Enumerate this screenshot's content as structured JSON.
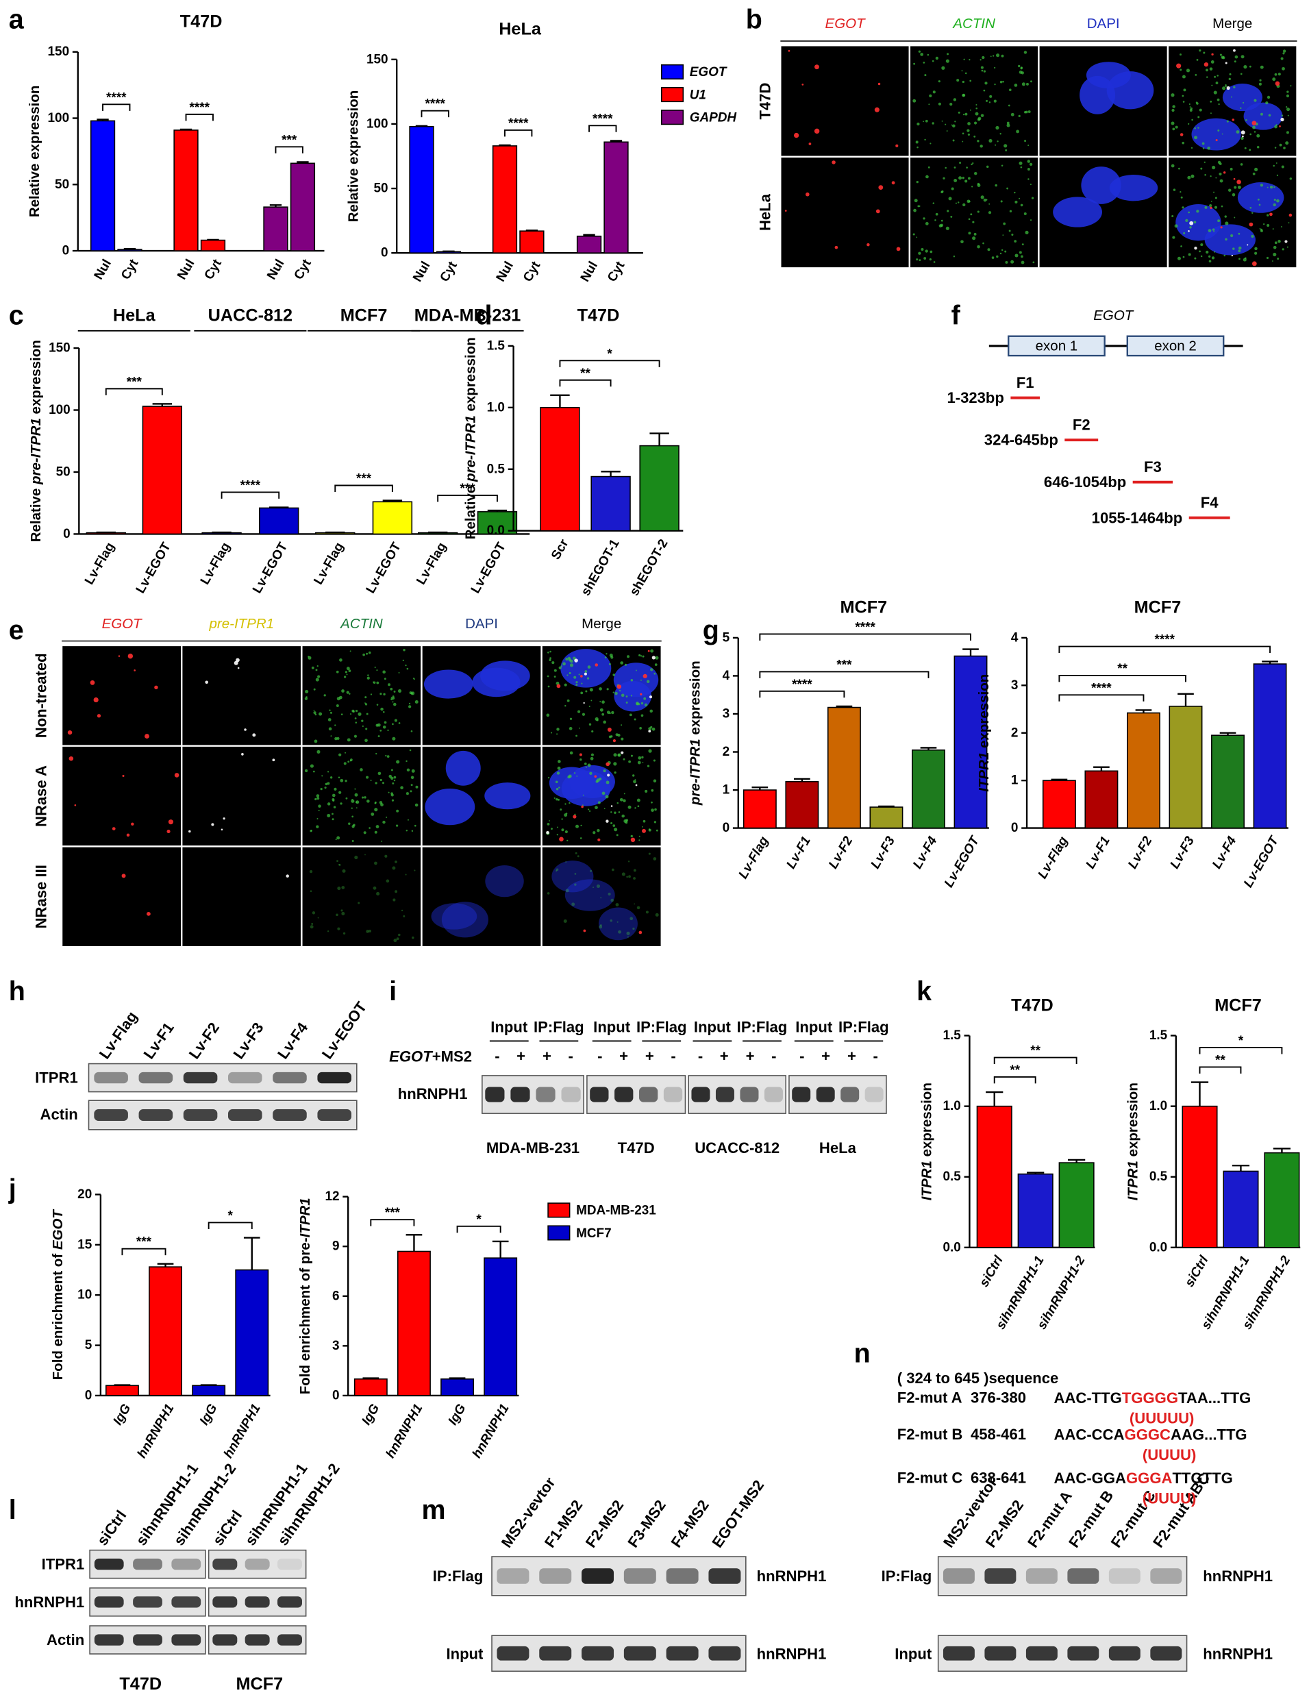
{
  "panel_letters": [
    "a",
    "b",
    "c",
    "d",
    "e",
    "f",
    "g",
    "h",
    "i",
    "j",
    "k",
    "l",
    "m",
    "n"
  ],
  "chart_data": [
    {
      "type": "bar",
      "title": "T47D",
      "ylabel": "Relative expression",
      "categories": [
        "Nul",
        "Cyt",
        "Nul",
        "Cyt",
        "Nul",
        "Cyt"
      ],
      "values": [
        98,
        1,
        91,
        8,
        33,
        66
      ],
      "errors": [
        1,
        0.5,
        0.5,
        0.3,
        1.5,
        1
      ],
      "colors": [
        "#0000ff",
        "#0000ff",
        "#ff0000",
        "#ff0000",
        "#800080",
        "#800080"
      ],
      "ylim": [
        0,
        150
      ],
      "yticks": [
        0,
        50,
        100,
        150
      ],
      "brackets": [
        {
          "from": 0,
          "to": 1,
          "label": "****"
        },
        {
          "from": 2,
          "to": 3,
          "label": "****"
        },
        {
          "from": 4,
          "to": 5,
          "label": "***"
        }
      ],
      "legend": [
        {
          "name": "EGOT",
          "color": "#0000ff"
        },
        {
          "name": "U1",
          "color": "#ff0000"
        },
        {
          "name": "GAPDH",
          "color": "#800080"
        }
      ],
      "legend_italic": true
    },
    {
      "type": "bar",
      "title": "HeLa",
      "ylabel": "Relative expression",
      "categories": [
        "Nul",
        "Cyt",
        "Nul",
        "Cyt",
        "Nul",
        "Cyt"
      ],
      "values": [
        98,
        1,
        83,
        17,
        13,
        86
      ],
      "errors": [
        0.5,
        0.3,
        0.5,
        0.5,
        1,
        1
      ],
      "colors": [
        "#0000ff",
        "#0000ff",
        "#ff0000",
        "#ff0000",
        "#800080",
        "#800080"
      ],
      "ylim": [
        0,
        150
      ],
      "yticks": [
        0,
        50,
        100,
        150
      ],
      "brackets": [
        {
          "from": 0,
          "to": 1,
          "label": "****"
        },
        {
          "from": 2,
          "to": 3,
          "label": "****"
        },
        {
          "from": 4,
          "to": 5,
          "label": "****"
        }
      ]
    },
    {
      "type": "bar",
      "ylabel": [
        "Relative ",
        "pre-ITPR1",
        " expression"
      ],
      "italic_segments": [
        1
      ],
      "groups": [
        "HeLa",
        "UACC-812",
        "MCF7",
        "MDA-MB-231"
      ],
      "categories": [
        "Lv-Flag",
        "Lv-EGOT",
        "Lv-Flag",
        "Lv-EGOT",
        "Lv-Flag",
        "Lv-EGOT",
        "Lv-Flag",
        "Lv-EGOT"
      ],
      "values": [
        1,
        103,
        1,
        21,
        1,
        26,
        1,
        18
      ],
      "errors": [
        0.3,
        2,
        0.3,
        0.5,
        0.3,
        1,
        0.3,
        1
      ],
      "colors": [
        "#ff0000",
        "#ff0000",
        "#0000cc",
        "#0000cc",
        "#ffff00",
        "#ffff00",
        "#1a8a1a",
        "#1a8a1a"
      ],
      "ylim": [
        0,
        150
      ],
      "yticks": [
        0,
        50,
        100,
        150
      ],
      "brackets": [
        {
          "from": 0,
          "to": 1,
          "label": "***"
        },
        {
          "from": 2,
          "to": 3,
          "label": "****"
        },
        {
          "from": 4,
          "to": 5,
          "label": "***"
        },
        {
          "from": 6,
          "to": 7,
          "label": "***"
        }
      ]
    },
    {
      "type": "bar",
      "title": "T47D",
      "ylabel": [
        "Relative ",
        "pre-ITPR1",
        " expression"
      ],
      "italic_segments": [
        1
      ],
      "categories": [
        "Scr",
        "shEGOT-1",
        "shEGOT-2"
      ],
      "values": [
        1.0,
        0.44,
        0.69
      ],
      "errors": [
        0.1,
        0.04,
        0.1
      ],
      "colors": [
        "#ff0000",
        "#1a1acc",
        "#1a8a1a"
      ],
      "ylim": [
        0,
        1.5
      ],
      "yticks": [
        {
          "value": 0,
          "label": "0.0"
        },
        0.5,
        {
          "value": 1,
          "label": "1.0"
        },
        1.5
      ],
      "brackets": [
        {
          "from": 0,
          "to": 1,
          "label": "**"
        },
        {
          "from": 0,
          "to": 2,
          "label": "*"
        }
      ]
    },
    {
      "type": "bar",
      "title": "MCF7",
      "ylabel": [
        "pre-ITPR1",
        " expression"
      ],
      "italic_segments": [
        0
      ],
      "categories": [
        "Lv-Flag",
        "Lv-F1",
        "Lv-F2",
        "Lv-F3",
        "Lv-F4",
        "Lv-EGOT"
      ],
      "xlabel_italic": true,
      "values": [
        1.0,
        1.22,
        3.17,
        0.55,
        2.05,
        4.52
      ],
      "errors": [
        0.07,
        0.07,
        0.03,
        0.02,
        0.06,
        0.18
      ],
      "colors": [
        "#ff0000",
        "#b00000",
        "#cc6600",
        "#9a9a20",
        "#1e7b1e",
        "#1818cc"
      ],
      "ylim": [
        0,
        5
      ],
      "yticks": [
        0,
        1,
        2,
        3,
        4,
        5
      ],
      "brackets": [
        {
          "from": 0,
          "to": 2,
          "label": "****"
        },
        {
          "from": 0,
          "to": 4,
          "label": "***"
        },
        {
          "from": 0,
          "to": 5,
          "label": "****"
        }
      ]
    },
    {
      "type": "bar",
      "title": "MCF7",
      "ylabel": [
        "ITPR1",
        " expression"
      ],
      "italic_segments": [
        0
      ],
      "categories": [
        "Lv-Flag",
        "Lv-F1",
        "Lv-F2",
        "Lv-F3",
        "Lv-F4",
        "Lv-EGOT"
      ],
      "xlabel_italic": true,
      "values": [
        1.0,
        1.2,
        2.42,
        2.56,
        1.95,
        3.45
      ],
      "errors": [
        0.02,
        0.08,
        0.06,
        0.26,
        0.05,
        0.05
      ],
      "colors": [
        "#ff0000",
        "#b00000",
        "#cc6600",
        "#9a9a20",
        "#1e7b1e",
        "#1818cc"
      ],
      "ylim": [
        0,
        4
      ],
      "yticks": [
        0,
        1,
        2,
        3,
        4
      ],
      "brackets": [
        {
          "from": 0,
          "to": 2,
          "label": "****"
        },
        {
          "from": 0,
          "to": 3,
          "label": "**"
        },
        {
          "from": 0,
          "to": 5,
          "label": "****"
        }
      ]
    },
    {
      "type": "bar",
      "ylabel": [
        "Fold enrichment of ",
        "EGOT"
      ],
      "italic_segments": [
        1
      ],
      "categories": [
        "IgG",
        "hnRNPH1",
        "IgG",
        "hnRNPH1"
      ],
      "xlabel_italic": true,
      "values": [
        1,
        12.8,
        1,
        12.5
      ],
      "errors": [
        0.05,
        0.3,
        0.05,
        3.2
      ],
      "colors": [
        "#ff0000",
        "#ff0000",
        "#0000cc",
        "#0000cc"
      ],
      "ylim": [
        0,
        20
      ],
      "yticks": [
        0,
        5,
        10,
        15,
        20
      ],
      "brackets": [
        {
          "from": 0,
          "to": 1,
          "label": "***"
        },
        {
          "from": 2,
          "to": 3,
          "label": "*"
        }
      ]
    },
    {
      "type": "bar",
      "ylabel": [
        "Fold enrichment of pre-",
        "ITPR1"
      ],
      "italic_segments": [
        1
      ],
      "categories": [
        "IgG",
        "hnRNPH1",
        "IgG",
        "hnRNPH1"
      ],
      "xlabel_italic": true,
      "values": [
        1,
        8.7,
        1,
        8.3
      ],
      "errors": [
        0.05,
        1.0,
        0.05,
        1.0
      ],
      "colors": [
        "#ff0000",
        "#ff0000",
        "#0000cc",
        "#0000cc"
      ],
      "ylim": [
        0,
        12
      ],
      "yticks": [
        0,
        3,
        6,
        9,
        12
      ],
      "brackets": [
        {
          "from": 0,
          "to": 1,
          "label": "***"
        },
        {
          "from": 2,
          "to": 3,
          "label": "*"
        }
      ],
      "legend": [
        {
          "name": "MDA-MB-231",
          "color": "#ff0000"
        },
        {
          "name": "MCF7",
          "color": "#0000cc"
        }
      ]
    },
    {
      "type": "bar",
      "title": "T47D",
      "ylabel": [
        "ITPR1",
        " expression"
      ],
      "italic_segments": [
        0
      ],
      "categories": [
        "siCtrl",
        "sihnRNPH1-1",
        "sihnRNPH1-2"
      ],
      "xlabel_italic": true,
      "values": [
        1.0,
        0.52,
        0.6
      ],
      "errors": [
        0.1,
        0.01,
        0.02
      ],
      "colors": [
        "#ff0000",
        "#1a1acc",
        "#1a8a1a"
      ],
      "ylim": [
        0,
        1.5
      ],
      "yticks": [
        {
          "value": 0,
          "label": "0.0"
        },
        0.5,
        {
          "value": 1,
          "label": "1.0"
        },
        1.5
      ],
      "brackets": [
        {
          "from": 0,
          "to": 1,
          "label": "**"
        },
        {
          "from": 0,
          "to": 2,
          "label": "**"
        }
      ]
    },
    {
      "type": "bar",
      "title": "MCF7",
      "ylabel": [
        "ITPR1",
        " expression"
      ],
      "italic_segments": [
        0
      ],
      "categories": [
        "siCtrl",
        "sihnRNPH1-1",
        "sihnRNPH1-2"
      ],
      "xlabel_italic": true,
      "values": [
        1.0,
        0.54,
        0.67
      ],
      "errors": [
        0.17,
        0.04,
        0.03
      ],
      "colors": [
        "#ff0000",
        "#1a1acc",
        "#1a8a1a"
      ],
      "ylim": [
        0,
        1.5
      ],
      "yticks": [
        {
          "value": 0,
          "label": "0.0"
        },
        0.5,
        {
          "value": 1,
          "label": "1.0"
        },
        1.5
      ],
      "brackets": [
        {
          "from": 0,
          "to": 1,
          "label": "**"
        },
        {
          "from": 0,
          "to": 2,
          "label": "*"
        }
      ]
    }
  ],
  "panel_b": {
    "columns": [
      "EGOT",
      "ACTIN",
      "DAPI",
      "Merge"
    ],
    "column_colors": [
      "#e02020",
      "#20b020",
      "#2030c0",
      "#000000"
    ],
    "italic_columns": [
      0,
      1
    ],
    "rows": [
      "T47D",
      "HeLa"
    ]
  },
  "panel_e": {
    "columns": [
      "EGOT",
      "pre-ITPR1",
      "ACTIN",
      "DAPI",
      "Merge"
    ],
    "column_colors": [
      "#e02020",
      "#d4c000",
      "#1a7a3a",
      "#1f3a80",
      "#000000"
    ],
    "italic_columns": [
      0,
      1,
      2
    ],
    "rows": [
      "Non-treated",
      "NRase A",
      "NRase III"
    ]
  },
  "panel_f": {
    "gene": "EGOT",
    "exons": [
      "exon 1",
      "exon 2"
    ],
    "fragments": [
      {
        "name": "F1",
        "range": "1-323bp"
      },
      {
        "name": "F2",
        "range": "324-645bp"
      },
      {
        "name": "F3",
        "range": "646-1054bp"
      },
      {
        "name": "F4",
        "range": "1055-1464bp"
      }
    ]
  },
  "panel_h": {
    "lanes": [
      "Lv-Flag",
      "Lv-F1",
      "Lv-F2",
      "Lv-F3",
      "Lv-F4",
      "Lv-EGOT"
    ],
    "rows": [
      "ITPR1",
      "Actin"
    ]
  },
  "panel_i": {
    "groups": [
      "Input",
      "IP:Flag",
      "Input",
      "IP:Flag",
      "Input",
      "IP:Flag",
      "Input",
      "IP:Flag"
    ],
    "condition": [
      "EGOT",
      "+MS2"
    ],
    "signs": [
      "-",
      "+",
      "+",
      "-",
      "-",
      "+",
      "+",
      "-",
      "-",
      "+",
      "+",
      "-",
      "-",
      "+",
      "+",
      "-"
    ],
    "row": "hnRNPH1",
    "cell_lines": [
      "MDA-MB-231",
      "T47D",
      "UCACC-812",
      "HeLa"
    ]
  },
  "panel_l": {
    "lanes": [
      "siCtrl",
      "sihnRNPH1-1",
      "sihnRNPH1-2",
      "siCtrl",
      "sihnRNPH1-1",
      "sihnRNPH1-2"
    ],
    "rows": [
      "ITPR1",
      "hnRNPH1",
      "Actin"
    ],
    "cell_lines": [
      "T47D",
      "MCF7"
    ]
  },
  "panel_m": {
    "lanes": [
      "MS2-vevtor",
      "F1-MS2",
      "F2-MS2",
      "F3-MS2",
      "F4-MS2",
      "EGOT-MS2"
    ],
    "rows": [
      "IP:Flag",
      "Input"
    ],
    "targets": [
      "hnRNPH1",
      "hnRNPH1"
    ]
  },
  "panel_n": {
    "sequence_title": "( 324 to 645 )sequence",
    "mutants": [
      {
        "name": "F2-mut A",
        "position": "376-380",
        "seq_before": "AAC-TTG",
        "seq_mut": "TGGGG",
        "seq_after": "TAA...TTG",
        "replacement": "(UUUUU)"
      },
      {
        "name": "F2-mut B",
        "position": "458-461",
        "seq_before": "AAC-CCA",
        "seq_mut": "GGGC",
        "seq_after": "AAG...TTG",
        "replacement": "(UUUU)"
      },
      {
        "name": "F2-mut C",
        "position": "638-641",
        "seq_before": "AAC-GGA",
        "seq_mut": "GGGA",
        "seq_after": "TTGTTG",
        "replacement": "(UUUU)"
      }
    ],
    "lanes": [
      "MS2-vevtor",
      "F2-MS2",
      "F2-mut A",
      "F2-mut B",
      "F2-mut C",
      "F2-mut ABC"
    ],
    "rows": [
      "IP:Flag",
      "Input"
    ],
    "targets": [
      "hnRNPH1",
      "hnRNPH1"
    ]
  }
}
